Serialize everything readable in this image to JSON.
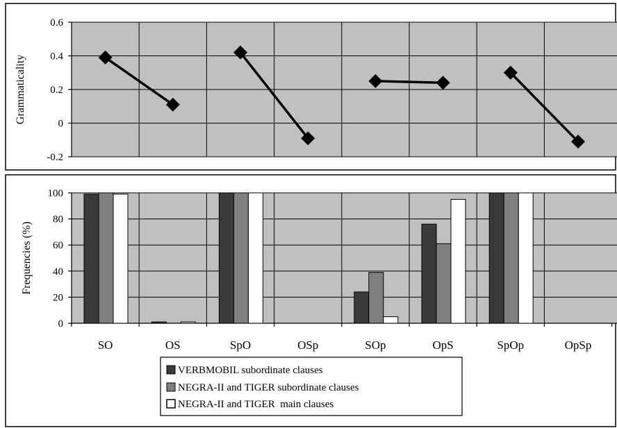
{
  "chart_data": [
    {
      "type": "line",
      "ylabel": "Grammaticality",
      "ylim": [
        -0.2,
        0.6
      ],
      "yticks": [
        "-0.2",
        "0",
        "0.2",
        "0.4",
        "0.6"
      ],
      "ytick_values": [
        -0.2,
        0,
        0.2,
        0.4,
        0.6
      ],
      "categories": [
        "SO",
        "OS",
        "SpO",
        "OSp",
        "SOp",
        "OpS",
        "SpOp",
        "OpSp"
      ],
      "segments": [
        {
          "from": 0,
          "to": 1,
          "values": [
            0.39,
            0.11
          ]
        },
        {
          "from": 2,
          "to": 3,
          "values": [
            0.42,
            -0.09
          ]
        },
        {
          "from": 4,
          "to": 5,
          "values": [
            0.25,
            0.24
          ]
        },
        {
          "from": 6,
          "to": 7,
          "values": [
            0.3,
            -0.11
          ]
        }
      ],
      "grid": true
    },
    {
      "type": "bar",
      "ylabel": "Frequencies (%)",
      "ylim": [
        0,
        100
      ],
      "yticks": [
        "0",
        "20",
        "40",
        "60",
        "80",
        "100"
      ],
      "ytick_values": [
        0,
        20,
        40,
        60,
        80,
        100
      ],
      "categories": [
        "SO",
        "OS",
        "SpO",
        "OSp",
        "SOp",
        "OpS",
        "SpOp",
        "OpSp"
      ],
      "series": [
        {
          "name": "VERBMOBIL subordinate clauses",
          "color": "#3a3a3a",
          "values": [
            99,
            1,
            100,
            0,
            24,
            76,
            100,
            0
          ]
        },
        {
          "name": "NEGRA-II and TIGER subordinate clauses",
          "color": "#808080",
          "values": [
            100,
            0,
            100,
            0,
            39,
            61,
            100,
            0
          ]
        },
        {
          "name": "NEGRA-II and TIGER  main clauses",
          "color": "#ffffff",
          "values": [
            99,
            1,
            100,
            0,
            5,
            95,
            100,
            0
          ]
        }
      ],
      "legend": "bottom-center",
      "grid": true
    }
  ]
}
